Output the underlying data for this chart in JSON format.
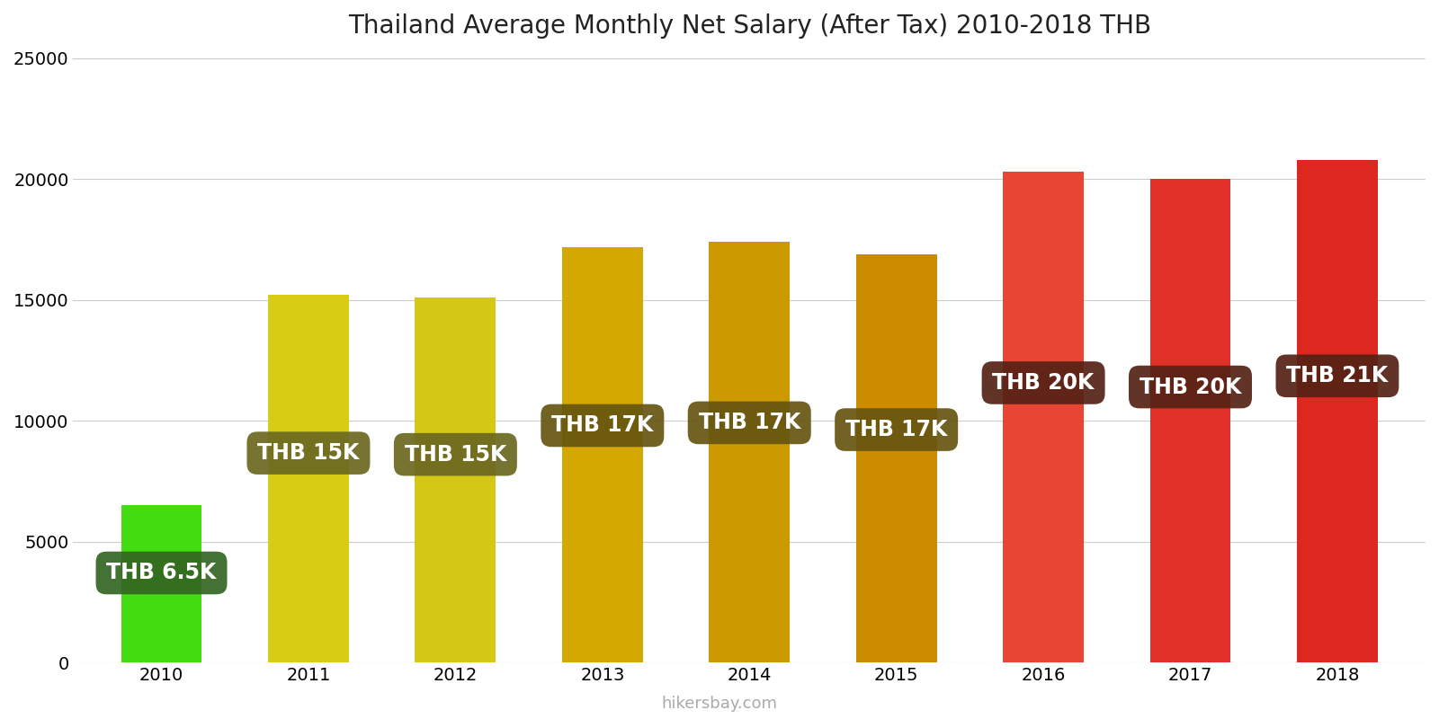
{
  "title": "Thailand Average Monthly Net Salary (After Tax) 2010-2018 THB",
  "years": [
    2010,
    2011,
    2012,
    2013,
    2014,
    2015,
    2016,
    2017,
    2018
  ],
  "values": [
    6500,
    15200,
    15100,
    17200,
    17400,
    16900,
    20300,
    20000,
    20800
  ],
  "bar_colors": [
    "#44dd11",
    "#d8cc15",
    "#d4c815",
    "#d4a800",
    "#cc9a00",
    "#cc8c00",
    "#e84535",
    "#e03028",
    "#dd2820"
  ],
  "labels": [
    "THB 6.5K",
    "THB 15K",
    "THB 15K",
    "THB 17K",
    "THB 17K",
    "THB 17K",
    "THB 20K",
    "THB 20K",
    "THB 21K"
  ],
  "label_bg_colors": [
    "#336622",
    "#6b6820",
    "#6b6820",
    "#665510",
    "#665510",
    "#665510",
    "#552215",
    "#552215",
    "#552215"
  ],
  "ylim": [
    0,
    25000
  ],
  "yticks": [
    0,
    5000,
    10000,
    15000,
    20000,
    25000
  ],
  "background_color": "#ffffff",
  "watermark": "hikersbay.com",
  "title_fontsize": 20,
  "label_fontsize": 17,
  "bar_width": 0.55
}
